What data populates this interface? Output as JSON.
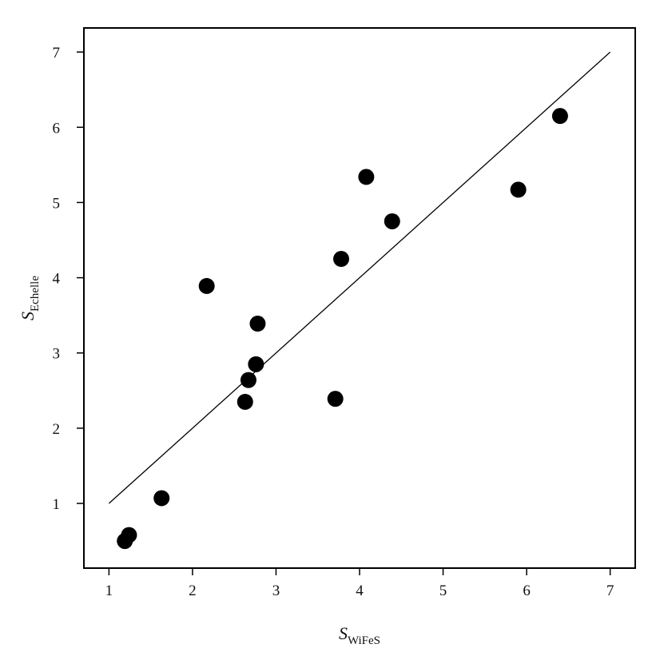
{
  "chart_data": {
    "type": "scatter",
    "x_label": {
      "main": "S",
      "sub": "WiFeS"
    },
    "y_label": {
      "main": "S",
      "sub": "Echelle"
    },
    "x": [
      1.19,
      1.24,
      1.63,
      2.17,
      2.63,
      2.67,
      2.76,
      2.78,
      3.71,
      3.78,
      4.08,
      4.39,
      5.9,
      6.4
    ],
    "values": [
      0.5,
      0.58,
      1.07,
      3.89,
      2.35,
      2.64,
      2.85,
      3.39,
      2.39,
      4.25,
      5.34,
      4.75,
      5.17,
      6.15
    ],
    "color": "#000000",
    "reference_line": {
      "x": [
        1,
        7
      ],
      "y": [
        1,
        7
      ],
      "color": "#000000"
    },
    "xlim": [
      0.7,
      7.3
    ],
    "ylim": [
      0.14,
      7.32
    ],
    "xticks": [
      1,
      2,
      3,
      4,
      5,
      6,
      7
    ],
    "yticks": [
      1,
      2,
      3,
      4,
      5,
      6,
      7
    ]
  }
}
